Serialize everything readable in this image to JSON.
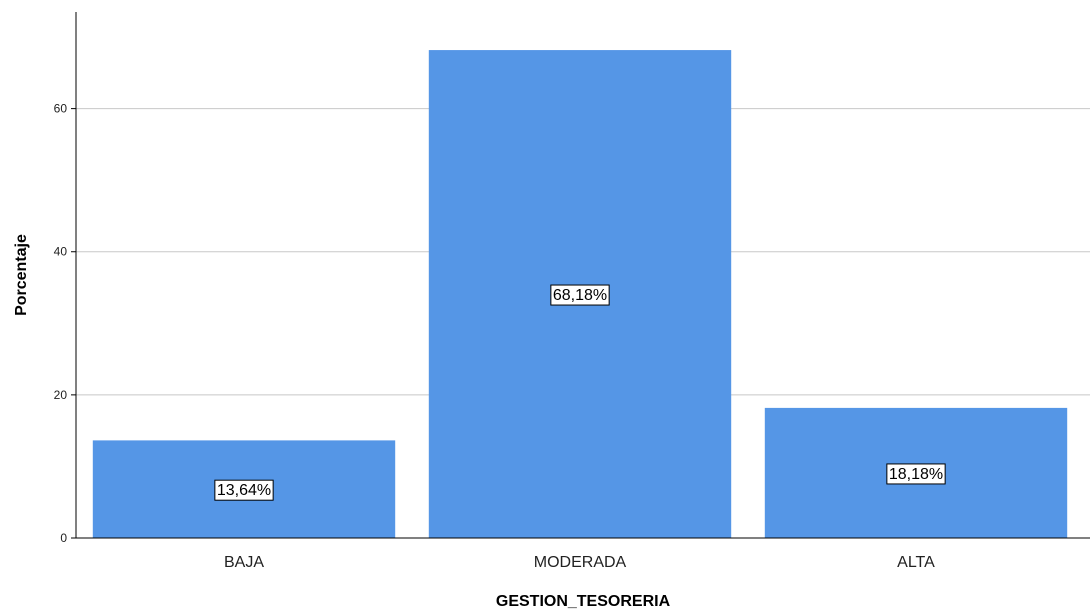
{
  "chart_data": {
    "type": "bar",
    "categories": [
      "BAJA",
      "MODERADA",
      "ALTA"
    ],
    "values": [
      13.64,
      68.18,
      18.18
    ],
    "data_labels": [
      "13,64%",
      "68,18%",
      "18,18%"
    ],
    "xlabel": "GESTION_TESORERIA",
    "ylabel": "Porcentaje",
    "ylim": [
      0,
      73.5
    ],
    "yticks": [
      0,
      20,
      40,
      60
    ],
    "ytick_labels": [
      "0",
      "20",
      "40",
      "60"
    ],
    "grid": true,
    "bar_color": "#5596e6",
    "gridline_color": "#c8c8c8"
  }
}
